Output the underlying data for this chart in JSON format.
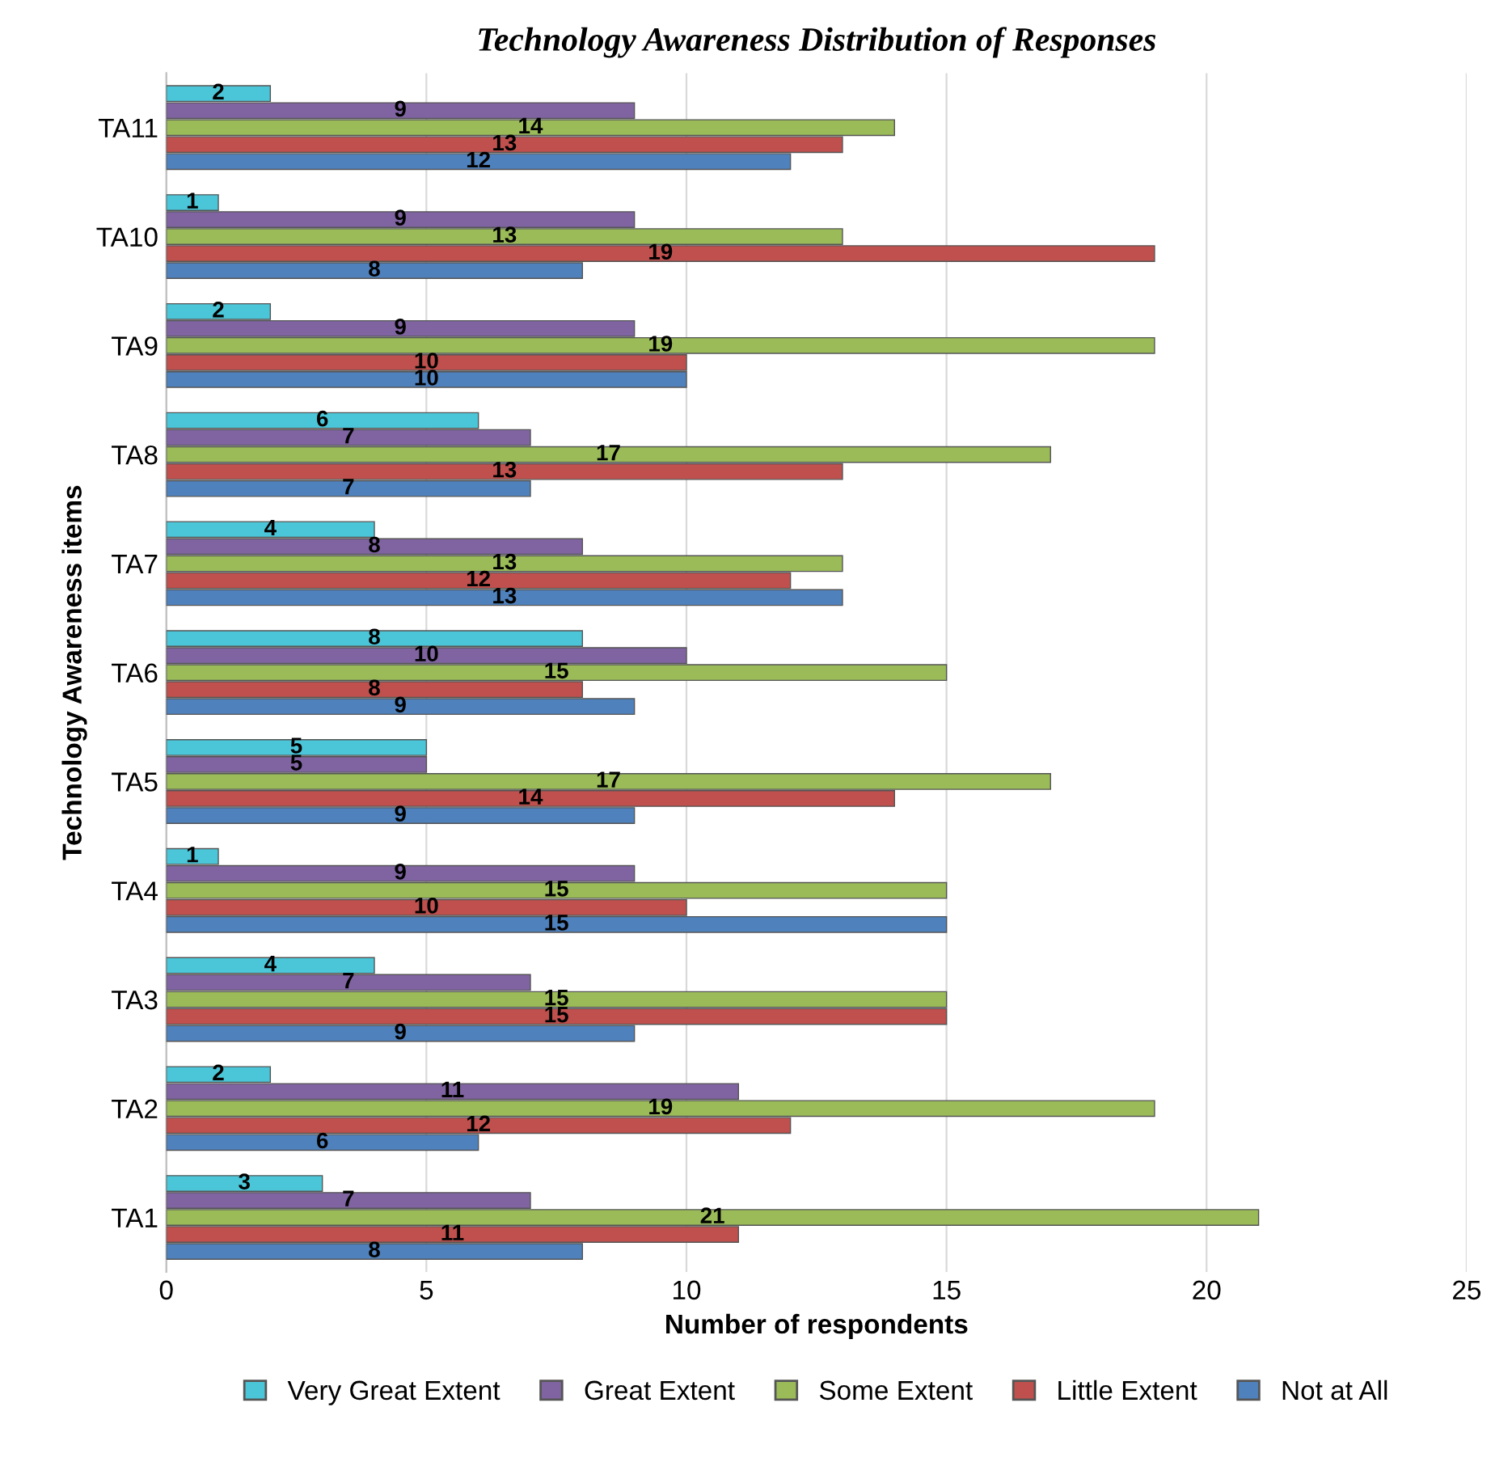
{
  "chart_data": {
    "type": "bar",
    "orientation": "horizontal",
    "title": "Technology Awareness Distribution of Responses",
    "xlabel": "Number of respondents",
    "ylabel": "Technology Awareness items",
    "categories": [
      "TA11",
      "TA10",
      "TA9",
      "TA8",
      "TA7",
      "TA6",
      "TA5",
      "TA4",
      "TA3",
      "TA2",
      "TA1"
    ],
    "series": [
      {
        "name": "Very Great Extent",
        "color": "#4bc6d8",
        "values": [
          2,
          1,
          2,
          6,
          4,
          8,
          5,
          1,
          4,
          2,
          3
        ]
      },
      {
        "name": "Great Extent",
        "color": "#8064a2",
        "values": [
          9,
          9,
          9,
          7,
          8,
          10,
          5,
          9,
          7,
          11,
          7
        ]
      },
      {
        "name": "Some Extent",
        "color": "#9bbb59",
        "values": [
          14,
          13,
          19,
          17,
          13,
          15,
          17,
          15,
          15,
          19,
          21
        ]
      },
      {
        "name": "Little Extent",
        "color": "#c0504d",
        "values": [
          13,
          19,
          10,
          13,
          12,
          8,
          14,
          10,
          15,
          12,
          11
        ]
      },
      {
        "name": "Not at All",
        "color": "#4f81bd",
        "values": [
          12,
          8,
          10,
          7,
          13,
          9,
          9,
          15,
          9,
          6,
          8
        ]
      }
    ],
    "xlim": [
      0,
      25
    ],
    "xticks": [
      0,
      5,
      10,
      15,
      20,
      25
    ],
    "grid": "x",
    "legend": "bottom",
    "data_labels": true
  }
}
